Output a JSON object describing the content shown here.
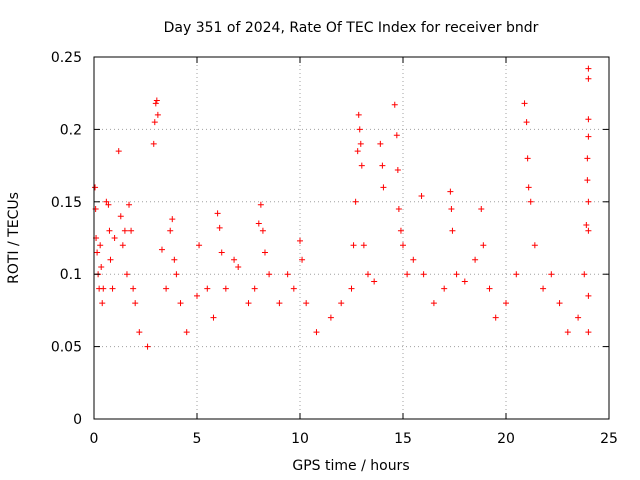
{
  "chart_data": {
    "type": "scatter",
    "title": "Day 351 of 2024, Rate Of TEC Index for receiver bndr",
    "xlabel": "GPS time / hours",
    "ylabel": "ROTI / TECUs",
    "xlim": [
      0,
      25
    ],
    "ylim": [
      0,
      0.25
    ],
    "x_ticks": [
      "0",
      "5",
      "10",
      "15",
      "20",
      "25"
    ],
    "y_ticks": [
      "0",
      "0.05",
      "0.1",
      "0.15",
      "0.2",
      "0.25"
    ],
    "grid": true,
    "marker": "+",
    "series": [
      {
        "color": "#ff0000",
        "points": [
          [
            0.05,
            0.16
          ],
          [
            0.08,
            0.145
          ],
          [
            0.1,
            0.125
          ],
          [
            0.15,
            0.115
          ],
          [
            0.2,
            0.1
          ],
          [
            0.25,
            0.09
          ],
          [
            0.3,
            0.12
          ],
          [
            0.35,
            0.105
          ],
          [
            0.4,
            0.08
          ],
          [
            0.45,
            0.09
          ],
          [
            0.6,
            0.15
          ],
          [
            0.7,
            0.148
          ],
          [
            0.75,
            0.13
          ],
          [
            0.8,
            0.11
          ],
          [
            0.9,
            0.09
          ],
          [
            1.0,
            0.125
          ],
          [
            1.2,
            0.185
          ],
          [
            1.3,
            0.14
          ],
          [
            1.4,
            0.12
          ],
          [
            1.5,
            0.13
          ],
          [
            1.6,
            0.1
          ],
          [
            1.7,
            0.148
          ],
          [
            1.8,
            0.13
          ],
          [
            1.9,
            0.09
          ],
          [
            2.0,
            0.08
          ],
          [
            2.2,
            0.06
          ],
          [
            2.6,
            0.05
          ],
          [
            2.9,
            0.19
          ],
          [
            2.95,
            0.205
          ],
          [
            3.0,
            0.218
          ],
          [
            3.05,
            0.22
          ],
          [
            3.1,
            0.21
          ],
          [
            3.3,
            0.117
          ],
          [
            3.5,
            0.09
          ],
          [
            3.7,
            0.13
          ],
          [
            3.8,
            0.138
          ],
          [
            3.9,
            0.11
          ],
          [
            4.0,
            0.1
          ],
          [
            4.2,
            0.08
          ],
          [
            4.5,
            0.06
          ],
          [
            5.0,
            0.085
          ],
          [
            5.1,
            0.12
          ],
          [
            5.5,
            0.09
          ],
          [
            5.8,
            0.07
          ],
          [
            6.0,
            0.142
          ],
          [
            6.1,
            0.132
          ],
          [
            6.2,
            0.115
          ],
          [
            6.4,
            0.09
          ],
          [
            6.8,
            0.11
          ],
          [
            7.0,
            0.105
          ],
          [
            7.5,
            0.08
          ],
          [
            7.8,
            0.09
          ],
          [
            8.0,
            0.135
          ],
          [
            8.1,
            0.148
          ],
          [
            8.2,
            0.13
          ],
          [
            8.3,
            0.115
          ],
          [
            8.5,
            0.1
          ],
          [
            9.0,
            0.08
          ],
          [
            9.4,
            0.1
          ],
          [
            9.7,
            0.09
          ],
          [
            10.0,
            0.123
          ],
          [
            10.1,
            0.11
          ],
          [
            10.3,
            0.08
          ],
          [
            10.8,
            0.06
          ],
          [
            11.5,
            0.07
          ],
          [
            12.0,
            0.08
          ],
          [
            12.5,
            0.09
          ],
          [
            12.6,
            0.12
          ],
          [
            12.7,
            0.15
          ],
          [
            12.8,
            0.185
          ],
          [
            12.85,
            0.21
          ],
          [
            12.9,
            0.2
          ],
          [
            12.95,
            0.19
          ],
          [
            13.0,
            0.175
          ],
          [
            13.1,
            0.12
          ],
          [
            13.3,
            0.1
          ],
          [
            13.6,
            0.095
          ],
          [
            13.9,
            0.19
          ],
          [
            14.0,
            0.175
          ],
          [
            14.05,
            0.16
          ],
          [
            14.6,
            0.217
          ],
          [
            14.7,
            0.196
          ],
          [
            14.75,
            0.172
          ],
          [
            14.8,
            0.145
          ],
          [
            14.9,
            0.13
          ],
          [
            15.0,
            0.12
          ],
          [
            15.2,
            0.1
          ],
          [
            15.5,
            0.11
          ],
          [
            15.9,
            0.154
          ],
          [
            16.0,
            0.1
          ],
          [
            16.5,
            0.08
          ],
          [
            17.0,
            0.09
          ],
          [
            17.3,
            0.157
          ],
          [
            17.35,
            0.145
          ],
          [
            17.4,
            0.13
          ],
          [
            17.6,
            0.1
          ],
          [
            18.0,
            0.095
          ],
          [
            18.5,
            0.11
          ],
          [
            18.8,
            0.145
          ],
          [
            18.9,
            0.12
          ],
          [
            19.2,
            0.09
          ],
          [
            19.5,
            0.07
          ],
          [
            20.0,
            0.08
          ],
          [
            20.5,
            0.1
          ],
          [
            20.9,
            0.218
          ],
          [
            21.0,
            0.205
          ],
          [
            21.05,
            0.18
          ],
          [
            21.1,
            0.16
          ],
          [
            21.2,
            0.15
          ],
          [
            21.4,
            0.12
          ],
          [
            21.8,
            0.09
          ],
          [
            22.2,
            0.1
          ],
          [
            22.6,
            0.08
          ],
          [
            23.0,
            0.06
          ],
          [
            23.5,
            0.07
          ],
          [
            23.8,
            0.1
          ],
          [
            23.9,
            0.134
          ],
          [
            23.95,
            0.165
          ],
          [
            24.0,
            0.242
          ],
          [
            24.0,
            0.235
          ],
          [
            24.0,
            0.207
          ],
          [
            24.0,
            0.195
          ],
          [
            23.95,
            0.18
          ],
          [
            24.0,
            0.15
          ],
          [
            24.0,
            0.13
          ],
          [
            24.0,
            0.085
          ],
          [
            24.0,
            0.06
          ]
        ]
      }
    ]
  }
}
